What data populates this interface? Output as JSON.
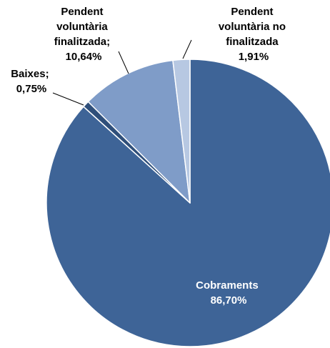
{
  "chart_data": {
    "type": "pie",
    "slices": [
      {
        "name": "Cobraments",
        "value": 86.7,
        "display": "86,70%",
        "color": "#3e6497"
      },
      {
        "name": "Baixes",
        "value": 0.75,
        "display": "0,75%",
        "color": "#2f4f7a"
      },
      {
        "name": "Pendent voluntària finalitzada",
        "value": 10.64,
        "display": "10,64%",
        "color": "#7f9cc8"
      },
      {
        "name": "Pendent voluntària no finalitzada",
        "value": 1.91,
        "display": "1,91%",
        "color": "#b7c8e2"
      }
    ],
    "labels": [
      {
        "lines": [
          "Cobraments",
          "86,70%"
        ]
      },
      {
        "lines": [
          "Baixes;",
          "0,75%"
        ]
      },
      {
        "lines": [
          "Pendent",
          "voluntària",
          "finalitzada;",
          "10,64%"
        ]
      },
      {
        "lines": [
          "Pendent",
          "voluntària no",
          "finalitzada",
          "1,91%"
        ]
      }
    ],
    "start_angle_deg": 0,
    "direction": "clockwise"
  }
}
